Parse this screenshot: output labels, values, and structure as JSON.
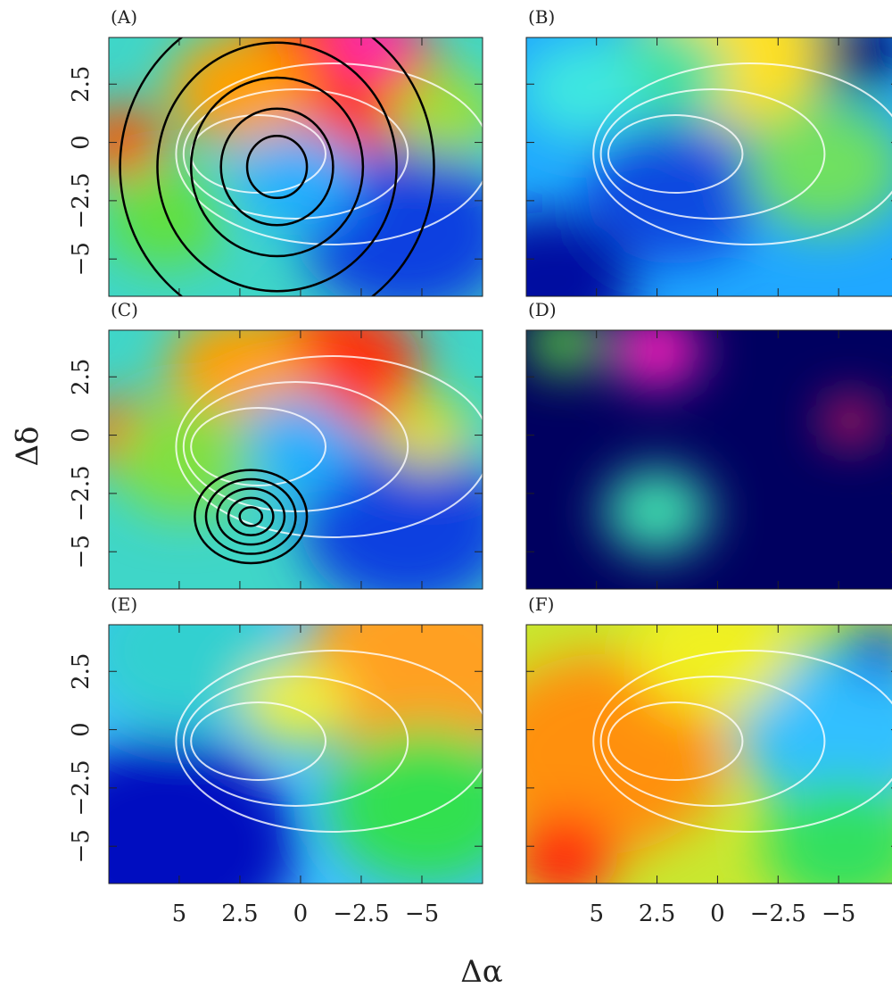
{
  "chart_data": {
    "type": "heatmap_grid",
    "xlabel": "Δα",
    "ylabel": "Δδ",
    "xlim": [
      7.9,
      -7.5
    ],
    "ylim": [
      -6.6,
      4.5
    ],
    "xticks": [
      5,
      2.5,
      0,
      {
        "value": -2.5,
        "label": "−2.5"
      },
      {
        "value": -5,
        "label": "−5"
      }
    ],
    "yticks": [
      {
        "value": -5,
        "label": "−5"
      },
      {
        "value": -2.5,
        "label": "−2.5"
      },
      0,
      2.5
    ],
    "panels": [
      {
        "title": "(A)"
      },
      {
        "title": "(B)"
      },
      {
        "title": "(C)"
      },
      {
        "title": "(D)"
      },
      {
        "title": "(E)"
      },
      {
        "title": "(F)"
      }
    ]
  }
}
